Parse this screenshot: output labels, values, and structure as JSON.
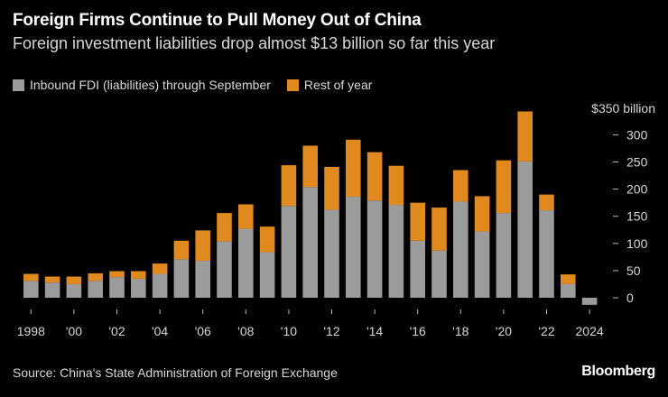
{
  "title": "Foreign Firms Continue to Pull Money Out of China",
  "subtitle": "Foreign investment liabilities drop almost $13 billion so far this year",
  "source": "Source: China's State Administration of Foreign Exchange",
  "brand": "Bloomberg",
  "colors": {
    "through_september": "#9b9b9b",
    "rest_of_year": "#e0891f",
    "background": "#000000"
  },
  "chart_data": {
    "type": "bar",
    "stacked": true,
    "categories": [
      "1998",
      "1999",
      "2000",
      "2001",
      "2002",
      "2003",
      "2004",
      "2005",
      "2006",
      "2007",
      "2008",
      "2009",
      "2010",
      "2011",
      "2012",
      "2013",
      "2014",
      "2015",
      "2016",
      "2017",
      "2018",
      "2019",
      "2020",
      "2021",
      "2022",
      "2023",
      "2024"
    ],
    "series": [
      {
        "name": "Inbound FDI (liabilities) through September",
        "values": [
          31,
          28,
          25,
          31,
          38,
          35,
          44,
          71,
          68,
          104,
          127,
          84,
          169,
          204,
          162,
          186,
          179,
          171,
          105,
          87,
          177,
          122,
          156,
          251,
          161,
          25,
          -13
        ]
      },
      {
        "name": "Rest of year",
        "values": [
          13,
          11,
          14,
          14,
          11,
          14,
          19,
          34,
          56,
          52,
          45,
          47,
          75,
          76,
          79,
          105,
          89,
          72,
          70,
          79,
          58,
          65,
          97,
          92,
          29,
          18,
          0
        ]
      }
    ],
    "x_tick_labels": [
      "1998",
      "'00",
      "'02",
      "'04",
      "'06",
      "'08",
      "'10",
      "'12",
      "'14",
      "'16",
      "'18",
      "'20",
      "'22",
      "2024"
    ],
    "y_ticks": [
      0,
      50,
      100,
      150,
      200,
      250,
      300
    ],
    "y_tick_labels": [
      "0",
      "50",
      "100",
      "150",
      "200",
      "250",
      "300"
    ],
    "y_top_label": "$350 billion",
    "ylim": [
      -15,
      350
    ],
    "y_axis_position": "right",
    "grid": false,
    "legend_position": "top-left"
  }
}
